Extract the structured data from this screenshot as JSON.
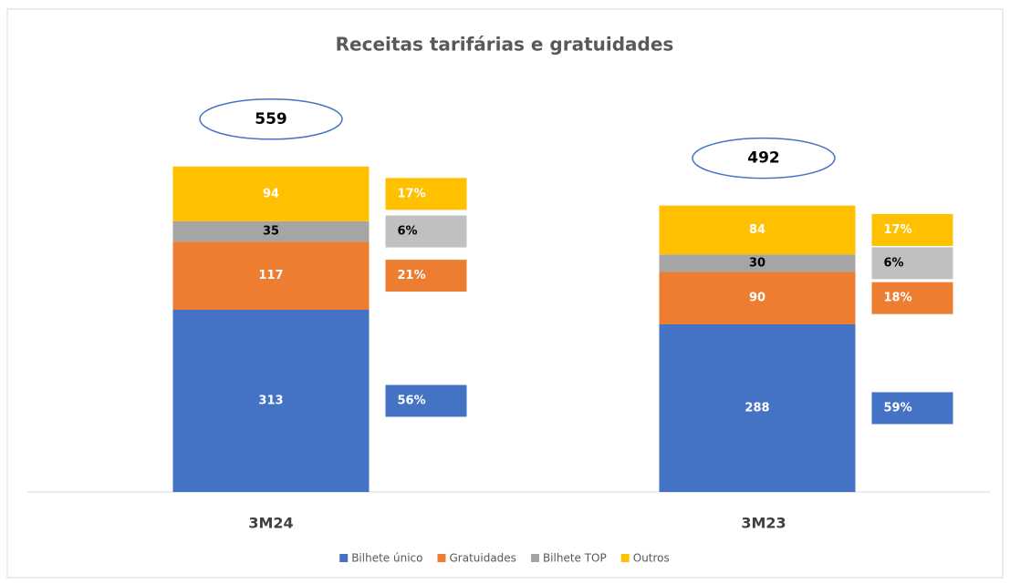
{
  "chart_data": {
    "type": "stacked_bar",
    "title": "Receitas tarifárias e gratuidades",
    "categories": [
      "3M24",
      "3M23"
    ],
    "totals": [
      559,
      492
    ],
    "series": [
      {
        "name": "Bilhete único",
        "color": "#4472c4",
        "values": [
          313,
          288
        ],
        "percent": [
          56,
          59
        ],
        "percent_labels": [
          "56%",
          "59%"
        ]
      },
      {
        "name": "Gratuidades",
        "color": "#ed7d31",
        "values": [
          117,
          90
        ],
        "percent": [
          21,
          18
        ],
        "percent_labels": [
          "21%",
          "18%"
        ]
      },
      {
        "name": "Bilhete TOP",
        "color": "#a5a5a5",
        "values": [
          35,
          30
        ],
        "percent": [
          6,
          6
        ],
        "percent_labels": [
          "6%",
          "6%"
        ]
      },
      {
        "name": "Outros",
        "color": "#ffc000",
        "values": [
          94,
          84
        ],
        "percent": [
          17,
          17
        ],
        "percent_labels": [
          "17%",
          "17%"
        ]
      }
    ],
    "legend": "bottom"
  }
}
